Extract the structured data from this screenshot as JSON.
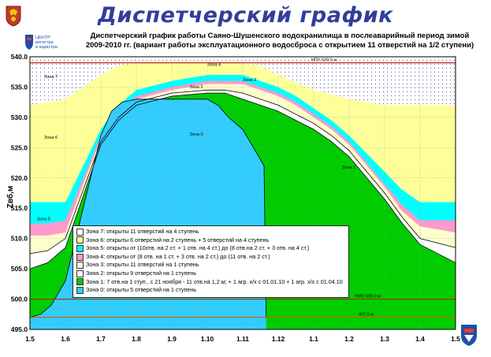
{
  "slide": {
    "title": "Диспетчерский график",
    "subtitle_line1": "Диспетчерский график работы Саяно-Шушенского водохранилища в послеаварийный период зимой",
    "subtitle_line2": "2009-2010 гг. (вариант работы эксплуатационного водосброса с открытием 11 отверстий на 1/2 ступени)",
    "logo_text_line1": "ЦЕНТР",
    "logo_text_line2": "регистра",
    "logo_text_line3": "и кадастра"
  },
  "colors": {
    "zone7": "#ffffff",
    "zone6": "#ffff99",
    "zone5": "#00ffff",
    "zone4": "#ff99cc",
    "zone3": "#ffffcc",
    "zone2": "#ffffff",
    "zone1": "#00cc00",
    "zone0": "#33ccff",
    "npu_line": "#cc0000",
    "umo_line": "#993300",
    "line_497": "#cc6600",
    "title": "#2f3f9a"
  },
  "chart_data": {
    "type": "area",
    "ylabel": "Zвб,м",
    "ylim": [
      495,
      540
    ],
    "yticks": [
      "495.0",
      "500.0",
      "505.0",
      "510.0",
      "515.0",
      "520.0",
      "525.0",
      "530.0",
      "535.0",
      "540.0"
    ],
    "x_ticks": [
      "1.5",
      "1.6",
      "1.7",
      "1.8",
      "1.9",
      "1.10",
      "1.11",
      "1.12",
      "1.1",
      "1.2",
      "1.3",
      "1.4",
      "1.5"
    ],
    "x_positions": [
      0,
      1,
      2,
      3,
      4,
      5,
      6,
      7,
      8,
      9,
      10,
      11,
      12
    ],
    "grid": true,
    "reference_lines": [
      {
        "label": "НПУ 539.0 м",
        "y": 539.0
      },
      {
        "label": "УМО 500.0 м",
        "y": 500.0
      },
      {
        "label": "497.0 м",
        "y": 497.0
      }
    ],
    "boundaries": {
      "zone6_top": [
        [
          0,
          532
        ],
        [
          1,
          533
        ],
        [
          1.5,
          535
        ],
        [
          2,
          537
        ],
        [
          2.5,
          538.5
        ],
        [
          3,
          539
        ],
        [
          6,
          539
        ],
        [
          6.5,
          538.5
        ],
        [
          7,
          537
        ],
        [
          8,
          534.5
        ],
        [
          9,
          533
        ],
        [
          10,
          532
        ],
        [
          11,
          532
        ],
        [
          12,
          532
        ]
      ],
      "zone5_top": [
        [
          0,
          516
        ],
        [
          0.5,
          516
        ],
        [
          1,
          516
        ],
        [
          1.5,
          522
        ],
        [
          2,
          528
        ],
        [
          2.5,
          532
        ],
        [
          3,
          534.5
        ],
        [
          4,
          536
        ],
        [
          5,
          537
        ],
        [
          6,
          537
        ],
        [
          6.5,
          536
        ],
        [
          7,
          535
        ],
        [
          7.5,
          533.5
        ],
        [
          8,
          531.5
        ],
        [
          8.5,
          529.5
        ],
        [
          9,
          527
        ],
        [
          9.5,
          524
        ],
        [
          10,
          521
        ],
        [
          10.5,
          518
        ],
        [
          11,
          516
        ],
        [
          12,
          516
        ]
      ],
      "zone4_top": [
        [
          0,
          512.5
        ],
        [
          0.5,
          512.5
        ],
        [
          1,
          513
        ],
        [
          1.5,
          520
        ],
        [
          2,
          527
        ],
        [
          2.5,
          531
        ],
        [
          3,
          533.5
        ],
        [
          4,
          535
        ],
        [
          5,
          536
        ],
        [
          6,
          536
        ],
        [
          6.5,
          535
        ],
        [
          7,
          534
        ],
        [
          7.5,
          532.5
        ],
        [
          8,
          530.5
        ],
        [
          8.5,
          528.5
        ],
        [
          9,
          526
        ],
        [
          9.5,
          522.5
        ],
        [
          10,
          519
        ],
        [
          10.5,
          515.5
        ],
        [
          11,
          513
        ],
        [
          12,
          513
        ]
      ],
      "zone3_top": [
        [
          0,
          510.5
        ],
        [
          0.5,
          510.5
        ],
        [
          1,
          511
        ],
        [
          1.5,
          519
        ],
        [
          2,
          526.5
        ],
        [
          2.5,
          530.5
        ],
        [
          3,
          533
        ],
        [
          4,
          534.5
        ],
        [
          5,
          535.5
        ],
        [
          6,
          535.5
        ],
        [
          6.5,
          534.5
        ],
        [
          7,
          533.5
        ],
        [
          7.5,
          532
        ],
        [
          8,
          530
        ],
        [
          8.5,
          528
        ],
        [
          9,
          525.5
        ],
        [
          9.5,
          522
        ],
        [
          10,
          518.5
        ],
        [
          10.5,
          514.5
        ],
        [
          11,
          512
        ],
        [
          12,
          511
        ]
      ],
      "zone2_top": [
        [
          0,
          507.5
        ],
        [
          0.5,
          508
        ],
        [
          1,
          510
        ],
        [
          1.5,
          518
        ],
        [
          2,
          526
        ],
        [
          2.5,
          530
        ],
        [
          3,
          532.5
        ],
        [
          4,
          534
        ],
        [
          5,
          534.5
        ],
        [
          5.5,
          534.5
        ],
        [
          6,
          534
        ],
        [
          6.5,
          533
        ],
        [
          7,
          532
        ],
        [
          7.5,
          530.5
        ],
        [
          8,
          529
        ],
        [
          8.5,
          527
        ],
        [
          9,
          524.5
        ],
        [
          9.5,
          521
        ],
        [
          10,
          517.5
        ],
        [
          10.5,
          513.5
        ],
        [
          11,
          510
        ],
        [
          12,
          508.5
        ]
      ],
      "zone1_top": [
        [
          0,
          505
        ],
        [
          0.5,
          506
        ],
        [
          1,
          508.5
        ],
        [
          1.5,
          517
        ],
        [
          2,
          525.5
        ],
        [
          2.5,
          529.5
        ],
        [
          3,
          532
        ],
        [
          4,
          533.5
        ],
        [
          5,
          534
        ],
        [
          5.5,
          534
        ],
        [
          6,
          533
        ],
        [
          6.5,
          532
        ],
        [
          7,
          531
        ],
        [
          7.5,
          529.5
        ],
        [
          8,
          528
        ],
        [
          8.5,
          526
        ],
        [
          9,
          523.5
        ],
        [
          9.5,
          520
        ],
        [
          10,
          516.5
        ],
        [
          10.5,
          512.5
        ],
        [
          11,
          509
        ],
        [
          12,
          506
        ]
      ],
      "zone0_top": [
        [
          0,
          497
        ],
        [
          0.3,
          497.5
        ],
        [
          0.6,
          499
        ],
        [
          1,
          503
        ],
        [
          1.5,
          515
        ],
        [
          2,
          527
        ],
        [
          2.3,
          531
        ],
        [
          2.6,
          532.5
        ],
        [
          3,
          533
        ],
        [
          4,
          533
        ],
        [
          5,
          533
        ],
        [
          5.3,
          532
        ],
        [
          5.6,
          530
        ],
        [
          6,
          528
        ],
        [
          6.3,
          525
        ],
        [
          6.6,
          522
        ],
        [
          6.66,
          497
        ]
      ]
    },
    "zone_labels": [
      "Зона 7",
      "Зона 6",
      "Зона 5",
      "Зона 4",
      "Зона 3",
      "Зона 2",
      "Зона 1",
      "Зона 0"
    ],
    "legend": [
      {
        "zone": "zone7",
        "text": "Зона 7: открыты 11 отверстий на 4 ступень"
      },
      {
        "zone": "zone6",
        "text": "Зона 6: открыты 6 отверстий на 2 ступень + 5 отверстий на 4 ступень"
      },
      {
        "zone": "zone5",
        "text": "Зона 5: открыты от (10отв. на 2 ст. + 1 отв. на 4 ст.) до (8 отв.на 2 ст. + 3 отв. на 4 ст.)"
      },
      {
        "zone": "zone4",
        "text": "Зона 4: открыты от (8 отв. на 1 ст. + 3 отв. на 2 ст.) до (11 отв. на 2 ст.)"
      },
      {
        "zone": "zone3",
        "text": "Зона 3: открыты 11 отверстий на 1 ступень"
      },
      {
        "zone": "zone2",
        "text": "Зона 2:  открыты 9 отверстий на 1 ступень"
      },
      {
        "zone": "zone1",
        "text": "Зона 1: 7 отв.на 1 ступ., с 21 ноября - 11 отв.на 1,2 м; + 1 агр. х/х с 01.01.10 + 1 агр. х/х с 01.04.10"
      },
      {
        "zone": "zone0",
        "text": "Зона 0: открыты 5 отверстий на 1 ступень"
      }
    ]
  }
}
